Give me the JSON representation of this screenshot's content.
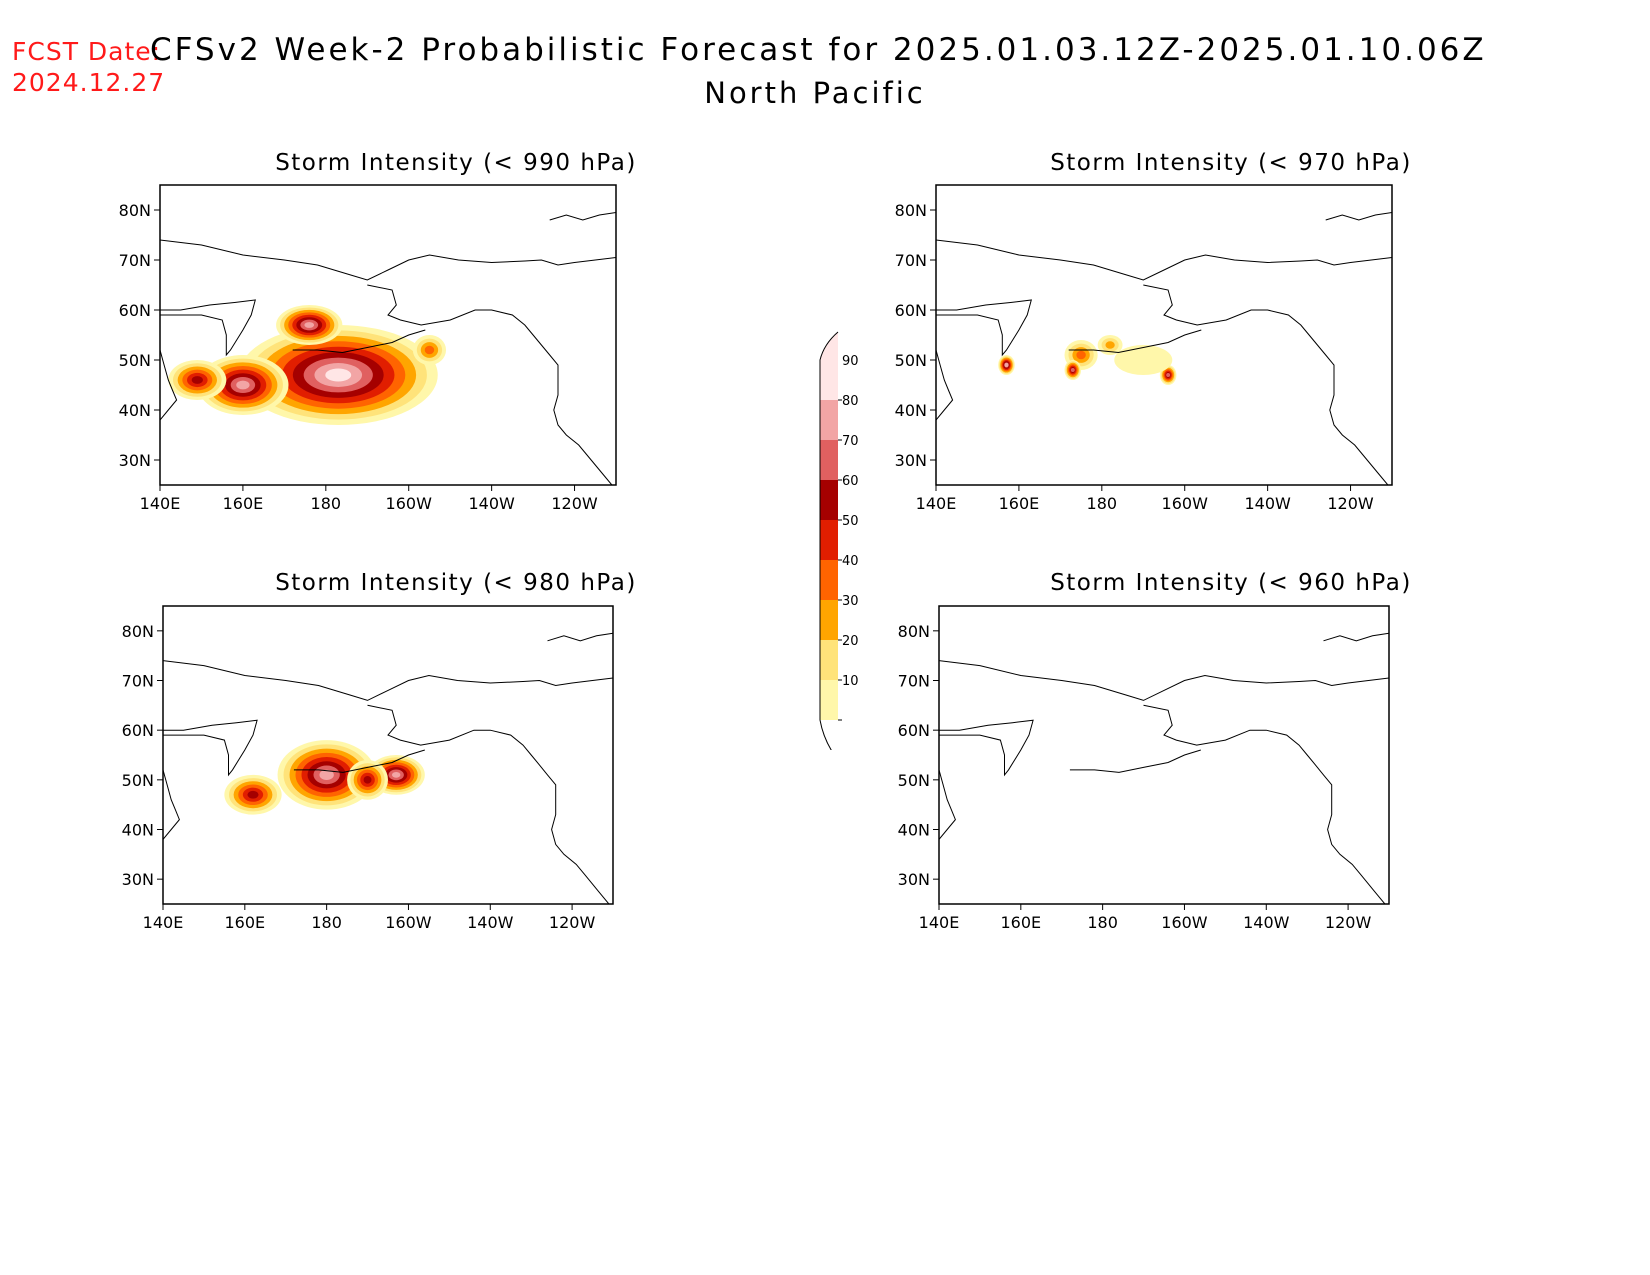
{
  "header": {
    "fcst_line1": "FCST Date:",
    "fcst_line2": "2024.12.27",
    "title": "CFSv2 Week-2 Probabilistic Forecast for 2025.01.03.12Z-2025.01.10.06Z",
    "subtitle": "North Pacific"
  },
  "axes": {
    "lon_ticks": [
      "140E",
      "160E",
      "180",
      "160W",
      "140W",
      "120W"
    ],
    "lon_values": [
      140,
      160,
      180,
      200,
      220,
      240
    ],
    "lat_ticks": [
      "80N",
      "70N",
      "60N",
      "50N",
      "40N",
      "30N"
    ],
    "lat_values": [
      80,
      70,
      60,
      50,
      40,
      30
    ],
    "lon_range": [
      140,
      250
    ],
    "lat_range": [
      25,
      85
    ]
  },
  "panels": [
    {
      "title": "Storm Intensity (< 990 hPa)",
      "threshold_hPa": 990,
      "blobs": [
        {
          "lon": 183,
          "lat": 47,
          "rlon": 24,
          "rlat": 10,
          "peak": 95
        },
        {
          "lon": 160,
          "lat": 45,
          "rlon": 11,
          "rlat": 6,
          "peak": 86
        },
        {
          "lon": 149,
          "lat": 46,
          "rlon": 7,
          "rlat": 4,
          "peak": 62
        },
        {
          "lon": 176,
          "lat": 57,
          "rlon": 8,
          "rlat": 4,
          "peak": 88
        },
        {
          "lon": 205,
          "lat": 52,
          "rlon": 4,
          "rlat": 3,
          "peak": 45
        }
      ]
    },
    {
      "title": "Storm Intensity (< 970 hPa)",
      "threshold_hPa": 970,
      "blobs": [
        {
          "lon": 175,
          "lat": 51,
          "rlon": 4,
          "rlat": 3,
          "peak": 42
        },
        {
          "lon": 182,
          "lat": 53,
          "rlon": 3,
          "rlat": 2,
          "peak": 38
        },
        {
          "lon": 157,
          "lat": 49,
          "rlon": 2,
          "rlat": 2,
          "peak": 82
        },
        {
          "lon": 173,
          "lat": 48,
          "rlon": 2,
          "rlat": 2,
          "peak": 78
        },
        {
          "lon": 196,
          "lat": 47,
          "rlon": 2,
          "rlat": 2,
          "peak": 72
        },
        {
          "lon": 190,
          "lat": 50,
          "rlon": 7,
          "rlat": 3,
          "peak": 18
        }
      ]
    },
    {
      "title": "Storm Intensity (< 980 hPa)",
      "threshold_hPa": 980,
      "blobs": [
        {
          "lon": 180,
          "lat": 51,
          "rlon": 12,
          "rlat": 7,
          "peak": 84
        },
        {
          "lon": 197,
          "lat": 51,
          "rlon": 7,
          "rlat": 4,
          "peak": 86
        },
        {
          "lon": 162,
          "lat": 47,
          "rlon": 7,
          "rlat": 4,
          "peak": 68
        },
        {
          "lon": 190,
          "lat": 50,
          "rlon": 5,
          "rlat": 4,
          "peak": 60
        }
      ]
    },
    {
      "title": "Storm Intensity (< 960 hPa)",
      "threshold_hPa": 960,
      "blobs": []
    }
  ],
  "colorbar": {
    "levels": [
      "10",
      "20",
      "30",
      "40",
      "50",
      "60",
      "70",
      "80",
      "90"
    ],
    "colors": [
      "#fff7aa",
      "#ffe37a",
      "#ffa500",
      "#ff6400",
      "#e11e00",
      "#a50000",
      "#e06060",
      "#f2a5a5",
      "#ffe6e6"
    ]
  }
}
